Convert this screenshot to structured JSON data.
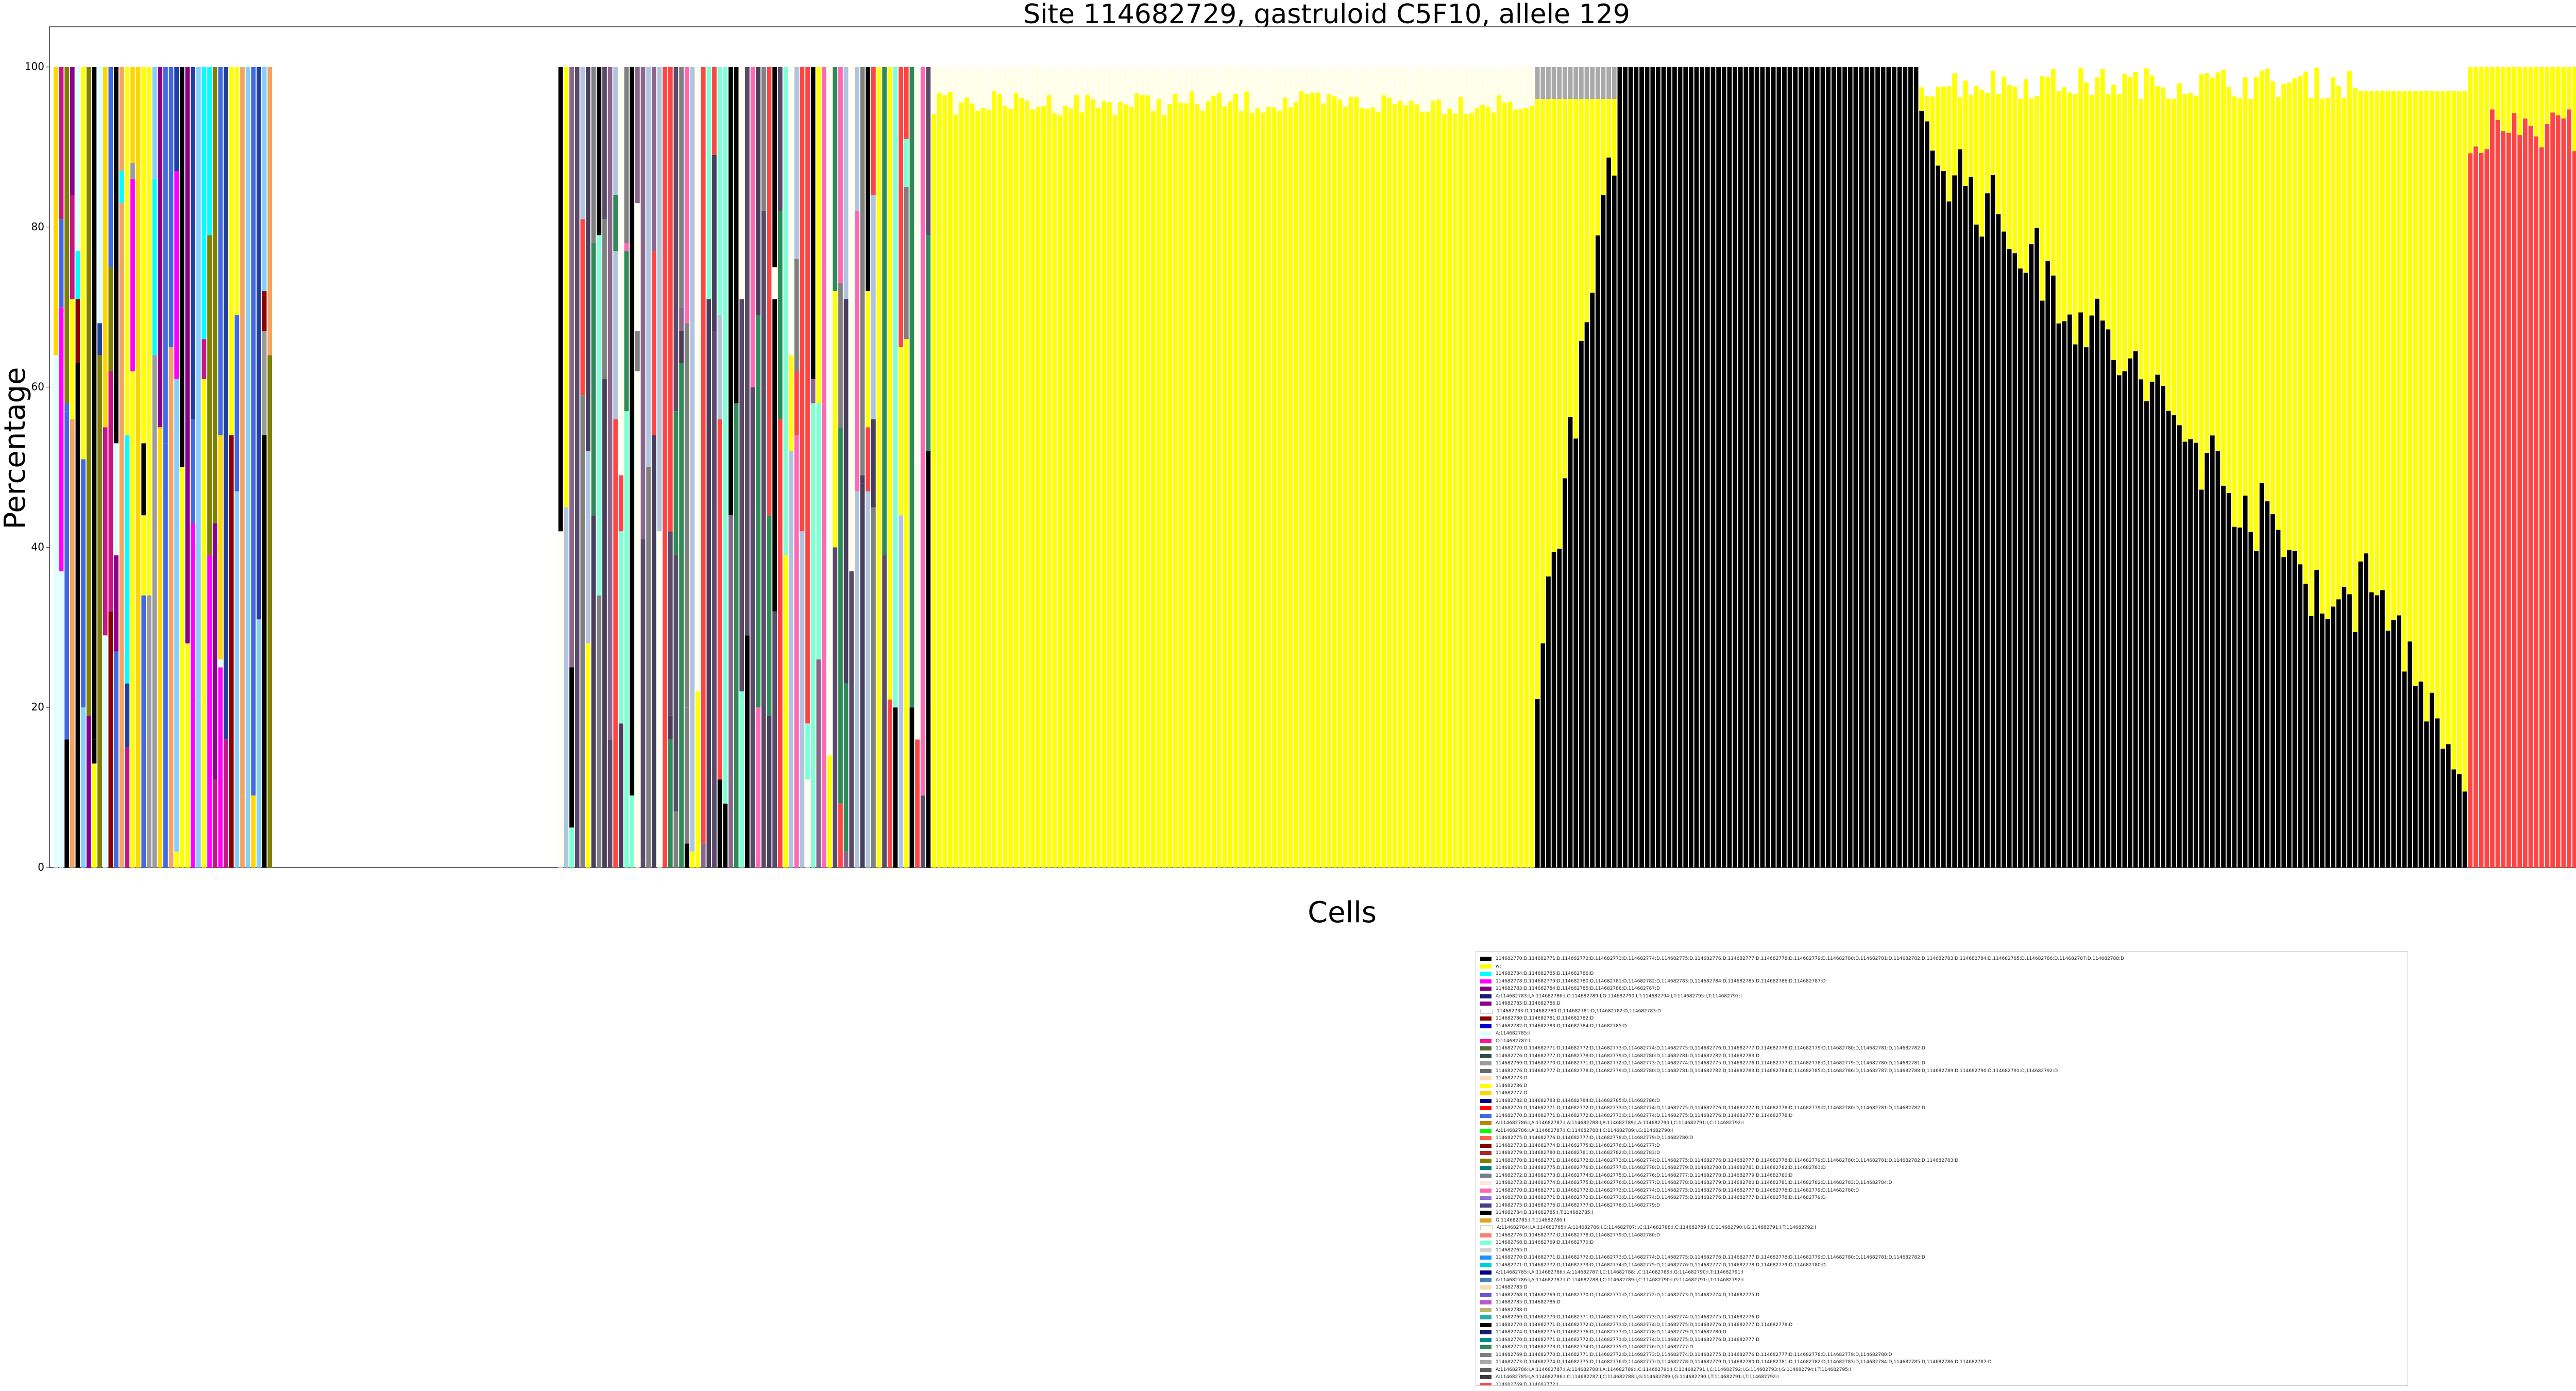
{
  "chart_data": {
    "type": "bar",
    "stacked": true,
    "title": "Site 114682729, gastruloid C5F10, allele 129",
    "xlabel": "Cells",
    "ylabel": "Percentage",
    "ylim": [
      0,
      100
    ],
    "yticks": [
      0,
      20,
      40,
      60,
      80,
      100
    ],
    "grid": false,
    "legend_position": "bottom-right",
    "n_cells": 470,
    "note_bar_segments": [
      {
        "from": 0,
        "to": 40,
        "pattern": "mixed",
        "colors": [
          "#9b9b9b",
          "#f4a460",
          "#00ffff",
          "#ffd700",
          "#e0ffff",
          "#000000",
          "#1f3f9f",
          "#808000",
          "#8b008b",
          "#c71585",
          "#4169e1",
          "#ff00ff",
          "#8b0000",
          "#ffff00",
          "#87cefa"
        ]
      },
      {
        "from": 40,
        "to": 92,
        "pattern": "empty"
      },
      {
        "from": 92,
        "to": 160,
        "pattern": "mixed",
        "colors": [
          "#000000",
          "#8b668b",
          "#fffff0",
          "#ff69b4",
          "#7fffd4",
          "#ffff00",
          "#b0c4de",
          "#ff4444",
          "#483d5b",
          "#5a4a6a",
          "#2e8b57",
          "#808080"
        ]
      },
      {
        "from": 160,
        "to": 270,
        "pattern": "yellow",
        "value": 97
      },
      {
        "from": 270,
        "to": 285,
        "pattern": "rise",
        "start": 25,
        "end": 90,
        "top": "#a9a9a9"
      },
      {
        "from": 285,
        "to": 340,
        "pattern": "black_full",
        "value": 100
      },
      {
        "from": 340,
        "to": 420,
        "pattern": "black_decline",
        "start": 92,
        "end": 30
      },
      {
        "from": 420,
        "to": 440,
        "pattern": "black_low",
        "start": 40,
        "end": 10
      },
      {
        "from": 440,
        "to": 470,
        "pattern": "red",
        "value": 95,
        "color": "#ff4444"
      }
    ],
    "legend": [
      {
        "color": "#000000",
        "label": "114682770:D,114682771:D,114682772:D,114682773:D,114682774:D,114682775:D,114682776:D,114682777:D,114682778:D,114682779:D,114682780:D,114682781:D,114682782:D,114682783:D,114682784:D,114682785:D,114682786:D,114682787:D,114682788:D"
      },
      {
        "color": "#ffff00",
        "label": "wt"
      },
      {
        "color": "#00ffff",
        "label": "114682784:D,114682785:D,114682786:D"
      },
      {
        "color": "#ff00ff",
        "label": "114682778:D,114682779:D,114682780:D,114682781:D,114682782:D,114682783:D,114682784:D,114682785:D,114682786:D,114682787:D"
      },
      {
        "color": "#800080",
        "label": "114682783:D,114682784:D,114682785:D,114682786:D,114682787:D"
      },
      {
        "color": "#191970",
        "label": "A:114682783:I,A:114682786:I,C:114682789:I,G:114682790:I,T:114682794:I,T:114682795:I,T:114682797:I"
      },
      {
        "color": "#8b008b",
        "label": "114682785:D,114682786:D"
      },
      {
        "color": "#ffffff",
        "label": "114682733:D,114682780:D,114682781:D,114682782:D,114682783:D"
      },
      {
        "color": "#8b0000",
        "label": "114682780:D,114682781:D,114682782:D"
      },
      {
        "color": "#0000cd",
        "label": "114682782:D,114682783:D,114682784:D,114682785:D"
      },
      {
        "color": "#e0ffff",
        "label": "A:114682785:I"
      },
      {
        "color": "#ff1493",
        "label": "C:114682787:I"
      },
      {
        "color": "#556b2f",
        "label": "114682770:D,114682771:D,114682772:D,114682773:D,114682774:D,114682775:D,114682776:D,114682777:D,114682778:D,114682779:D,114682780:D,114682781:D,114682782:D"
      },
      {
        "color": "#2f4f4f",
        "label": "114682776:D,114682777:D,114682778:D,114682779:D,114682780:D,114682781:D,114682782:D,114682783:D"
      },
      {
        "color": "#9b9b9b",
        "label": "114682769:D,114682770:D,114682771:D,114682772:D,114682773:D,114682774:D,114682775:D,114682776:D,114682777:D,114682778:D,114682779:D,114682780:D,114682781:D"
      },
      {
        "color": "#696969",
        "label": "114682776:D,114682777:D,114682778:D,114682779:D,114682780:D,114682781:D,114682782:D,114682783:D,114682784:D,114682785:D,114682786:D,114682787:D,114682788:D,114682789:D,114682790:D,114682791:D,114682792:D"
      },
      {
        "color": "#ffdab9",
        "label": "114682773:D"
      },
      {
        "color": "#ffff00",
        "label": "114682786:D"
      },
      {
        "color": "#ffd700",
        "label": "114682777:D"
      },
      {
        "color": "#00008b",
        "label": "114682782:D,114682783:D,114682784:D,114682785:D,114682786:D"
      },
      {
        "color": "#ff0000",
        "label": "114682770:D,114682771:D,114682772:D,114682773:D,114682774:D,114682775:D,114682776:D,114682777:D,114682778:D,114682779:D,114682780:D,114682781:D,114682782:D"
      },
      {
        "color": "#4169e1",
        "label": "114682770:D,114682771:D,114682772:D,114682773:D,114682774:D,114682775:D,114682776:D,114682777:D,114682778:D"
      },
      {
        "color": "#b8860b",
        "label": "A:114682786:I,A:114682787:I,A:114682788:I,A:114682789:I,A:114682790:I,C:114682791:I,C:114682792:I"
      },
      {
        "color": "#00ff00",
        "label": "A:114682786:I,A:114682787:I,C:114682788:I,C:114682789:I,G:114682790:I"
      },
      {
        "color": "#ff6347",
        "label": "114682775:D,114682776:D,114682777:D,114682778:D,114682779:D,114682780:D"
      },
      {
        "color": "#800000",
        "label": "114682773:D,114682774:D,114682775:D,114682776:D,114682777:D"
      },
      {
        "color": "#a52a2a",
        "label": "114682779:D,114682780:D,114682781:D,114682782:D,114682783:D"
      },
      {
        "color": "#808000",
        "label": "114682770:D,114682771:D,114682772:D,114682773:D,114682774:D,114682775:D,114682776:D,114682777:D,114682778:D,114682779:D,114682780:D,114682781:D,114682782:D,114682783:D"
      },
      {
        "color": "#008080",
        "label": "114682774:D,114682775:D,114682776:D,114682777:D,114682778:D,114682779:D,114682780:D,114682781:D,114682782:D,114682783:D"
      },
      {
        "color": "#708090",
        "label": "114682772:D,114682773:D,114682774:D,114682775:D,114682776:D,114682777:D,114682778:D,114682779:D,114682780:D"
      },
      {
        "color": "#ffe4e1",
        "label": "114682773:D,114682774:D,114682775:D,114682776:D,114682777:D,114682778:D,114682779:D,114682780:D,114682781:D,114682782:D,114682783:D,114682784:D"
      },
      {
        "color": "#ff69b4",
        "label": "114682770:D,114682771:D,114682772:D,114682773:D,114682774:D,114682775:D,114682776:D,114682777:D,114682778:D,114682779:D,114682780:D"
      },
      {
        "color": "#9370db",
        "label": "114682770:D,114682771:D,114682772:D,114682773:D,114682774:D,114682775:D,114682776:D,114682777:D,114682778:D,114682779:D"
      },
      {
        "color": "#483d8b",
        "label": "114682775:D,114682776:D,114682777:D,114682778:D,114682779:D"
      },
      {
        "color": "#000000",
        "label": "114682784:D,114682785:I,T:114682785:I"
      },
      {
        "color": "#daa520",
        "label": "G:114682785:I,T:114682786:I"
      },
      {
        "color": "#fffff0",
        "label": "A:114682784:I,A:114682785:I,A:114682786:I,C:114682787:I,C:114682788:I,C:114682789:I,C:114682790:I,G:114682791:I,T:114682792:I"
      },
      {
        "color": "#fa8072",
        "label": "114682776:D,114682777:D,114682778:D,114682779:D,114682780:D"
      },
      {
        "color": "#7fffd4",
        "label": "114682768:D,114682769:D,114682770:D"
      },
      {
        "color": "#d3d3d3",
        "label": "114682765:D"
      },
      {
        "color": "#1e90ff",
        "label": "114682770:D,114682771:D,114682772:D,114682773:D,114682774:D,114682775:D,114682776:D,114682777:D,114682778:D,114682779:D,114682780:D,114682781:D,114682782:D"
      },
      {
        "color": "#00ced1",
        "label": "114682771:D,114682772:D,114682773:D,114682774:D,114682775:D,114682776:D,114682777:D,114682778:D,114682779:D,114682780:D"
      },
      {
        "color": "#000080",
        "label": "A:114682785:I,A:114682786:I,A:114682787:I,C:114682788:I,C:114682789:I,G:114682790:I,T:114682791:I"
      },
      {
        "color": "#4682b4",
        "label": "A:114682786:I,A:114682787:I,C:114682788:I,C:114682789:I,C:114682790:I,G:114682791:I,T:114682792:I"
      },
      {
        "color": "#f5deb3",
        "label": "114682783:D"
      },
      {
        "color": "#6a5acd",
        "label": "114682768:D,114682769:D,114682770:D,114682771:D,114682772:D,114682773:D,114682774:D,114682775:D"
      },
      {
        "color": "#ba55d3",
        "label": "114682785:D,114682786:D"
      },
      {
        "color": "#bdb76b",
        "label": "114682788:D"
      },
      {
        "color": "#20b2aa",
        "label": "114682769:D,114682770:D,114682771:D,114682772:D,114682773:D,114682774:D,114682775:D,114682776:D"
      },
      {
        "color": "#000000",
        "label": "114682770:D,114682771:D,114682772:D,114682773:D,114682774:D,114682775:D,114682776:D,114682777:D,114682778:D"
      },
      {
        "color": "#191970",
        "label": "114682774:D,114682775:D,114682776:D,114682777:D,114682778:D,114682779:D,114682780:D"
      },
      {
        "color": "#008b8b",
        "label": "114682770:D,114682771:D,114682772:D,114682773:D,114682774:D,114682775:D,114682776:D,114682777:D"
      },
      {
        "color": "#2e8b57",
        "label": "114682772:D,114682773:D,114682774:D,114682775:D,114682776:D,114682777:D"
      },
      {
        "color": "#808080",
        "label": "114682769:D,114682770:D,114682771:D,114682772:D,114682773:D,114682774:D,114682775:D,114682776:D,114682777:D,114682778:D,114682779:D,114682780:D"
      },
      {
        "color": "#a9a9a9",
        "label": "114682773:D,114682774:D,114682775:D,114682776:D,114682777:D,114682778:D,114682779:D,114682780:D,114682781:D,114682782:D,114682783:D,114682784:D,114682785:D,114682786:D,114682787:D"
      },
      {
        "color": "#5f5f5f",
        "label": "A:114682786:I,A:114682787:I,A:114682788:I,A:114682789:I,C:114682790:I,C:114682791:I,C:114682792:I,G:114682793:I,G:114682794:I,T:114682795:I"
      },
      {
        "color": "#3c3c3c",
        "label": "A:114682785:I,A:114682786:I,C:114682787:I,C:114682788:I,G:114682789:I,G:114682790:I,T:114682791:I,T:114682792:I"
      },
      {
        "color": "#ff4444",
        "label": "114682769:D,114682772:I"
      }
    ]
  }
}
